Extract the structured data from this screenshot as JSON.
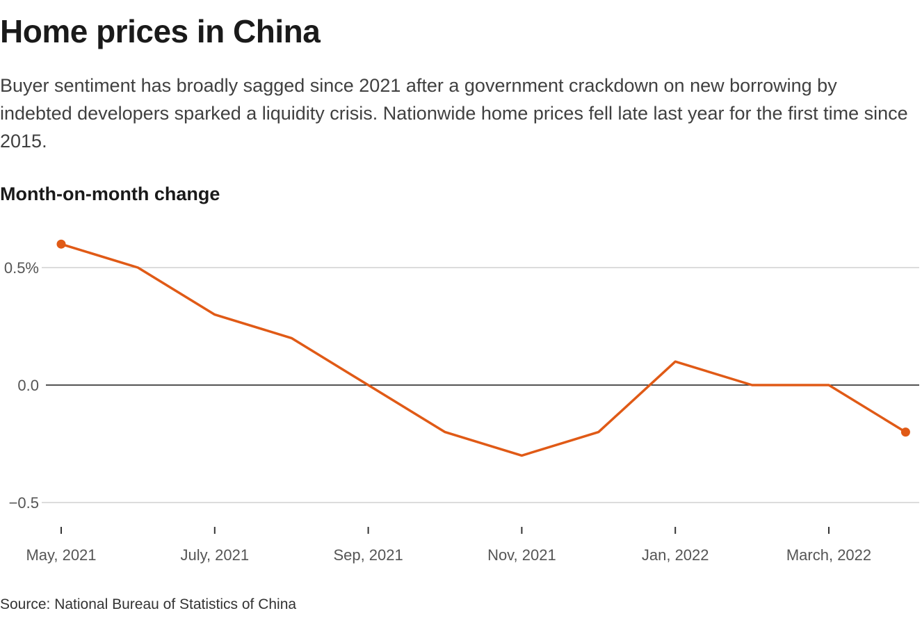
{
  "title": "Home prices in China",
  "subtitle": "Buyer sentiment has broadly sagged since 2021 after a government crackdown on new borrowing by indebted developers sparked a liquidity crisis. Nationwide home prices fell late last year for the first time since 2015.",
  "chart_label": "Month-on-month change",
  "source": "Source: National Bureau of Statistics of China",
  "colors": {
    "line": "#e05a16",
    "grid": "#c8c8c8",
    "zero": "#1a1a1a"
  },
  "chart_data": {
    "type": "line",
    "title": "Month-on-month change",
    "xlabel": "",
    "ylabel": "",
    "x": [
      "May 2021",
      "Jun 2021",
      "Jul 2021",
      "Aug 2021",
      "Sep 2021",
      "Oct 2021",
      "Nov 2021",
      "Dec 2021",
      "Jan 2022",
      "Feb 2022",
      "Mar 2022",
      "Apr 2022"
    ],
    "series": [
      {
        "values": [
          0.6,
          0.5,
          0.3,
          0.2,
          0.0,
          -0.2,
          -0.3,
          -0.2,
          0.1,
          0.0,
          0.0,
          -0.2
        ]
      }
    ],
    "ylim": [
      -0.5,
      0.6
    ],
    "y_ticks": [
      {
        "value": 0.5,
        "label": "0.5%"
      },
      {
        "value": 0.0,
        "label": "0.0"
      },
      {
        "value": -0.5,
        "label": "−0.5"
      }
    ],
    "x_ticks": [
      {
        "index": 0,
        "label": "May, 2021"
      },
      {
        "index": 2,
        "label": "July, 2021"
      },
      {
        "index": 4,
        "label": "Sep, 2021"
      },
      {
        "index": 6,
        "label": "Nov, 2021"
      },
      {
        "index": 8,
        "label": "Jan, 2022"
      },
      {
        "index": 10,
        "label": "March, 2022"
      }
    ],
    "endpoint_markers": true,
    "grid": true,
    "legend": "none"
  }
}
